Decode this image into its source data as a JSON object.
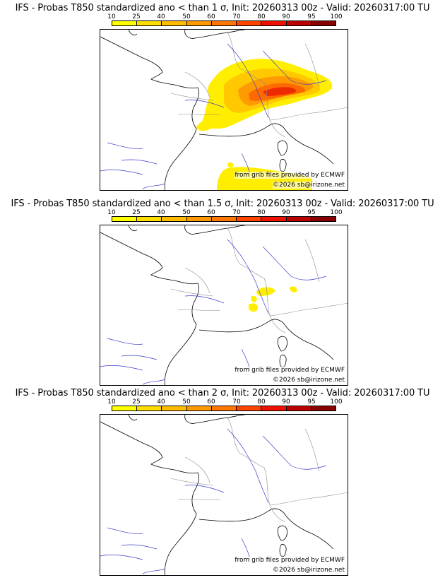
{
  "legend": {
    "ticks": [
      "10",
      "25",
      "40",
      "50",
      "60",
      "70",
      "80",
      "90",
      "95",
      "100"
    ],
    "colors": [
      "#ffff00",
      "#ffdd00",
      "#ffbb00",
      "#ff9900",
      "#ff7700",
      "#ff4400",
      "#ee1100",
      "#bb0000",
      "#880000",
      "#550000"
    ]
  },
  "credits": {
    "source": "from grib files provided by ECMWF",
    "copyright": "©2026 sb@irizone.net"
  },
  "panels": [
    {
      "title": "IFS - Probas T850  standardized ano < than 1 σ, Init: 20260313 00z - Valid: 20260317:00 TU",
      "threshold_sigma": "1"
    },
    {
      "title": "IFS - Probas T850  standardized ano < than 1.5 σ, Init: 20260313 00z - Valid: 20260317:00 TU",
      "threshold_sigma": "1.5"
    },
    {
      "title": "IFS - Probas T850  standardized ano < than 2 σ, Init: 20260313 00z - Valid: 20260317:00 TU",
      "threshold_sigma": "2"
    }
  ]
}
